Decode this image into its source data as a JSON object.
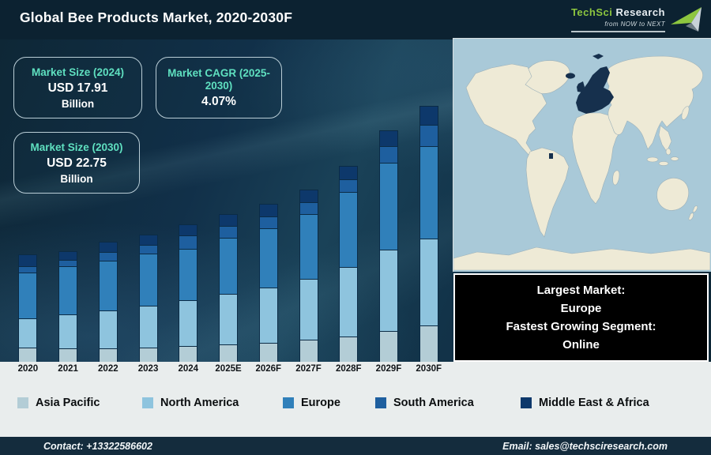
{
  "header": {
    "title": "Global Bee Products Market, 2020-2030F",
    "logo": {
      "brand_primary": "TechSci",
      "brand_secondary": "Research",
      "tagline": "from NOW to NEXT"
    }
  },
  "callouts": [
    {
      "label": "Market Size (2024)",
      "value": "USD 17.91",
      "unit": "Billion"
    },
    {
      "label": "Market CAGR (2025-2030)",
      "value": "4.07%",
      "unit": ""
    },
    {
      "label": "Market Size (2030)",
      "value": "USD 22.75",
      "unit": "Billion"
    }
  ],
  "highlight_box": {
    "lines": [
      "Largest Market:",
      "Europe",
      "Fastest Growing Segment:",
      "Online"
    ]
  },
  "map": {
    "highlighted_region": "Europe"
  },
  "footer": {
    "contact": "Contact: +13322586602",
    "email": "Email: sales@techsciresearch.com"
  },
  "colors": {
    "accent_teal": "#5fe0c0",
    "logo_green": "#8dc63f",
    "map_ocean": "#a9c9d8",
    "map_land": "#eeead6",
    "map_highlight": "#16304d",
    "footer_bg": "#142c3d"
  },
  "chart_data": {
    "type": "bar",
    "stacked": true,
    "title": "Global Bee Products Market, 2020-2030F",
    "categories": [
      "2020",
      "2021",
      "2022",
      "2023",
      "2024",
      "2025E",
      "2026F",
      "2027F",
      "2028F",
      "2029F",
      "2030F"
    ],
    "series": [
      {
        "name": "Asia Pacific",
        "color": "#b3cdd6",
        "values": [
          18,
          17,
          17,
          18,
          20,
          22,
          24,
          28,
          32,
          39,
          46
        ]
      },
      {
        "name": "North America",
        "color": "#8ec4de",
        "values": [
          37,
          43,
          48,
          53,
          58,
          64,
          70,
          77,
          88,
          103,
          110
        ]
      },
      {
        "name": "Europe",
        "color": "#3080ba",
        "values": [
          58,
          61,
          63,
          66,
          65,
          71,
          75,
          82,
          95,
          110,
          117
        ]
      },
      {
        "name": "South America",
        "color": "#1e5f9f",
        "values": [
          8,
          8,
          11,
          11,
          17,
          15,
          15,
          15,
          16,
          21,
          27
        ]
      },
      {
        "name": "Middle East & Africa",
        "color": "#0d386b",
        "values": [
          15,
          11,
          13,
          13,
          14,
          15,
          16,
          16,
          17,
          20,
          24
        ]
      }
    ],
    "stack_order": "first series at bottom",
    "value_unit": "relative bar height (no numeric axis shown)",
    "known_totals_usd_billion": {
      "2024": 17.91,
      "2030": 22.75
    },
    "cagr_2025_2030_pct": 4.07,
    "y_axis_visible": false,
    "grid": false,
    "legend_position": "bottom"
  }
}
